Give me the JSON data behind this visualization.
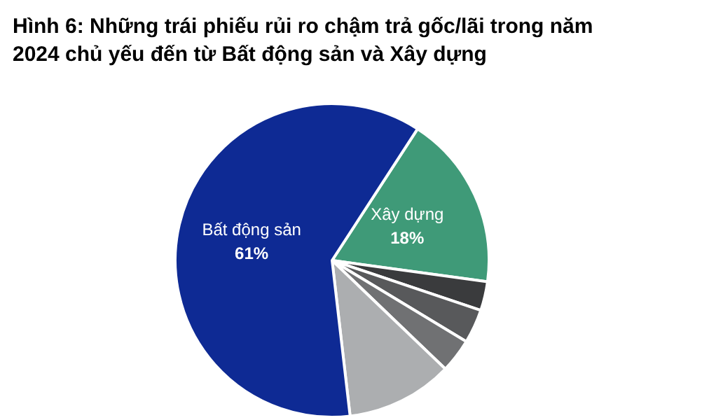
{
  "chart_data": {
    "type": "pie",
    "title": "Hình 6: Những trái phiếu rủi ro chậm trả gốc/lãi trong năm\n2024 chủ yếu đến từ Bất động sản và Xây dựng",
    "categories": [
      "Xây dựng",
      null,
      null,
      null,
      null,
      "Bất động sản"
    ],
    "values": [
      18,
      3,
      3.5,
      3.5,
      11,
      61
    ],
    "value_labels": [
      "18%",
      null,
      null,
      null,
      null,
      "61%"
    ],
    "colors": [
      "#3f9a78",
      "#3a3b3d",
      "#58595b",
      "#707173",
      "#acaeb0",
      "#0e2a94"
    ],
    "legend": false
  }
}
